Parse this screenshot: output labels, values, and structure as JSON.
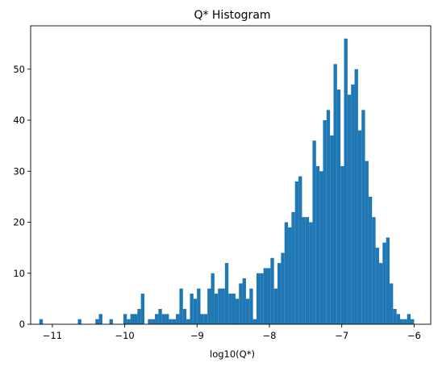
{
  "chart_data": {
    "type": "bar",
    "subtype": "histogram",
    "title": "Q* Histogram",
    "xlabel": "log10(Q*)",
    "ylabel": "",
    "xlim": [
      -11.3,
      -5.77
    ],
    "ylim": [
      0,
      58.5
    ],
    "grid": false,
    "x_ticks": [
      {
        "value": -11,
        "label": "−11"
      },
      {
        "value": -10,
        "label": "−10"
      },
      {
        "value": -9,
        "label": "−9"
      },
      {
        "value": -8,
        "label": "−8"
      },
      {
        "value": -7,
        "label": "−7"
      },
      {
        "value": -6,
        "label": "−6"
      }
    ],
    "y_ticks": [
      {
        "value": 0,
        "label": "0"
      },
      {
        "value": 10,
        "label": "10"
      },
      {
        "value": 20,
        "label": "20"
      },
      {
        "value": 30,
        "label": "30"
      },
      {
        "value": 40,
        "label": "40"
      },
      {
        "value": 50,
        "label": "50"
      }
    ],
    "bin_start": -11.18,
    "bin_end": -6.0,
    "counts": [
      1,
      0,
      0,
      0,
      0,
      0,
      0,
      0,
      0,
      0,
      0,
      1,
      0,
      0,
      0,
      0,
      1,
      2,
      0,
      0,
      1,
      0,
      0,
      0,
      2,
      1,
      2,
      2,
      3,
      6,
      0,
      1,
      1,
      2,
      3,
      2,
      2,
      1,
      1,
      2,
      7,
      3,
      1,
      6,
      5,
      7,
      2,
      2,
      7,
      10,
      6,
      7,
      7,
      12,
      6,
      6,
      5,
      8,
      9,
      5,
      7,
      1,
      10,
      10,
      11,
      11,
      13,
      7,
      12,
      14,
      20,
      19,
      22,
      28,
      29,
      21,
      21,
      20,
      36,
      31,
      30,
      40,
      42,
      37,
      51,
      46,
      31,
      56,
      45,
      47,
      50,
      38,
      42,
      32,
      25,
      21,
      15,
      12,
      16,
      17,
      8,
      3,
      2,
      1,
      1,
      2,
      1
    ]
  }
}
